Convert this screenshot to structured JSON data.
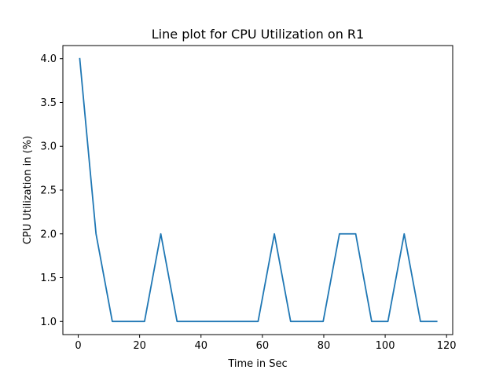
{
  "chart_data": {
    "type": "line",
    "title": "Line plot for CPU Utilization on R1",
    "xlabel": "Time in Sec",
    "ylabel": "CPU Utilization in (%)",
    "xlim": [
      -5,
      122
    ],
    "ylim": [
      0.85,
      4.15
    ],
    "xticks": [
      0,
      20,
      40,
      60,
      80,
      100,
      120
    ],
    "xtick_labels": [
      "0",
      "20",
      "40",
      "60",
      "80",
      "100",
      "120"
    ],
    "yticks": [
      1.0,
      1.5,
      2.0,
      2.5,
      3.0,
      3.5,
      4.0
    ],
    "ytick_labels": [
      "1.0",
      "1.5",
      "2.0",
      "2.5",
      "3.0",
      "3.5",
      "4.0"
    ],
    "grid": false,
    "series": [
      {
        "color": "#1f77b4",
        "x": [
          0.5,
          5.8,
          11.1,
          16.4,
          21.6,
          26.9,
          32.2,
          37.5,
          42.8,
          48.1,
          53.3,
          58.6,
          63.9,
          69.2,
          74.5,
          79.8,
          85.1,
          90.4,
          95.6,
          100.9,
          106.2,
          111.5,
          116.8
        ],
        "values": [
          4,
          2,
          1,
          1,
          1,
          2,
          1,
          1,
          1,
          1,
          1,
          1,
          2,
          1,
          1,
          1,
          2,
          2,
          1,
          1,
          2,
          1,
          1
        ]
      }
    ]
  }
}
